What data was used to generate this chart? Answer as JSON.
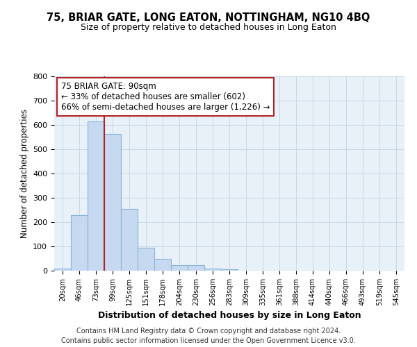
{
  "title": "75, BRIAR GATE, LONG EATON, NOTTINGHAM, NG10 4BQ",
  "subtitle": "Size of property relative to detached houses in Long Eaton",
  "xlabel": "Distribution of detached houses by size in Long Eaton",
  "ylabel": "Number of detached properties",
  "categories": [
    "20sqm",
    "46sqm",
    "73sqm",
    "99sqm",
    "125sqm",
    "151sqm",
    "178sqm",
    "204sqm",
    "230sqm",
    "256sqm",
    "283sqm",
    "309sqm",
    "335sqm",
    "361sqm",
    "388sqm",
    "414sqm",
    "440sqm",
    "466sqm",
    "493sqm",
    "519sqm",
    "545sqm"
  ],
  "values": [
    10,
    228,
    615,
    563,
    253,
    95,
    48,
    22,
    24,
    8,
    5,
    0,
    0,
    0,
    0,
    0,
    0,
    0,
    0,
    0,
    0
  ],
  "bar_color": "#c6d9f0",
  "bar_edge_color": "#8ab4d8",
  "grid_color": "#c8d8e8",
  "vline_color": "#b22222",
  "vline_x_idx": 2.5,
  "annotation_line1": "75 BRIAR GATE: 90sqm",
  "annotation_line2": "← 33% of detached houses are smaller (602)",
  "annotation_line3": "66% of semi-detached houses are larger (1,226) →",
  "annotation_box_color": "#ffffff",
  "annotation_box_edge": "#b22222",
  "ylim": [
    0,
    800
  ],
  "yticks": [
    0,
    100,
    200,
    300,
    400,
    500,
    600,
    700,
    800
  ],
  "background_color": "#e8f0f8",
  "footer1": "Contains HM Land Registry data © Crown copyright and database right 2024.",
  "footer2": "Contains public sector information licensed under the Open Government Licence v3.0."
}
